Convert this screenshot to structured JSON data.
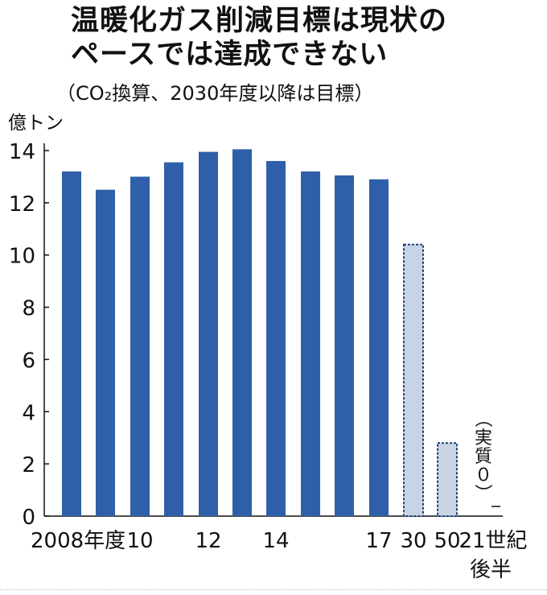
{
  "chart_data": {
    "type": "bar",
    "title_lines": [
      "温暖化ガス削減目標は現状の",
      "ペースでは達成できない"
    ],
    "subtitle": "（CO₂換算、2030年度以降は目標）",
    "ylabel": "億トン",
    "ylim": [
      0,
      14
    ],
    "yticks": [
      0,
      2,
      4,
      6,
      8,
      10,
      12,
      14
    ],
    "categories": [
      "2008",
      "2009",
      "2010",
      "2011",
      "2012",
      "2013",
      "2014",
      "2015",
      "2016",
      "2017",
      "2030",
      "2050",
      "21世紀後半"
    ],
    "values": [
      13.2,
      12.5,
      13.0,
      13.55,
      13.95,
      14.05,
      13.6,
      13.2,
      13.05,
      12.9,
      10.4,
      2.8,
      0
    ],
    "target_from_index": 10,
    "xtick_labels": [
      {
        "index": 0,
        "text": "2008年度"
      },
      {
        "index": 2,
        "text": "10"
      },
      {
        "index": 4,
        "text": "12"
      },
      {
        "index": 6,
        "text": "14"
      },
      {
        "index": 9,
        "text": "17"
      },
      {
        "index": 10,
        "text": "30"
      },
      {
        "index": 11,
        "text": "50"
      },
      {
        "index": 12,
        "text": "21世紀"
      }
    ],
    "xtick_label_line2": "後半",
    "annotation": "（実質０）",
    "colors": {
      "actual": "#2f5fa8",
      "target_fill": "#c8d3e3",
      "target_border": "#1d3f73"
    }
  }
}
